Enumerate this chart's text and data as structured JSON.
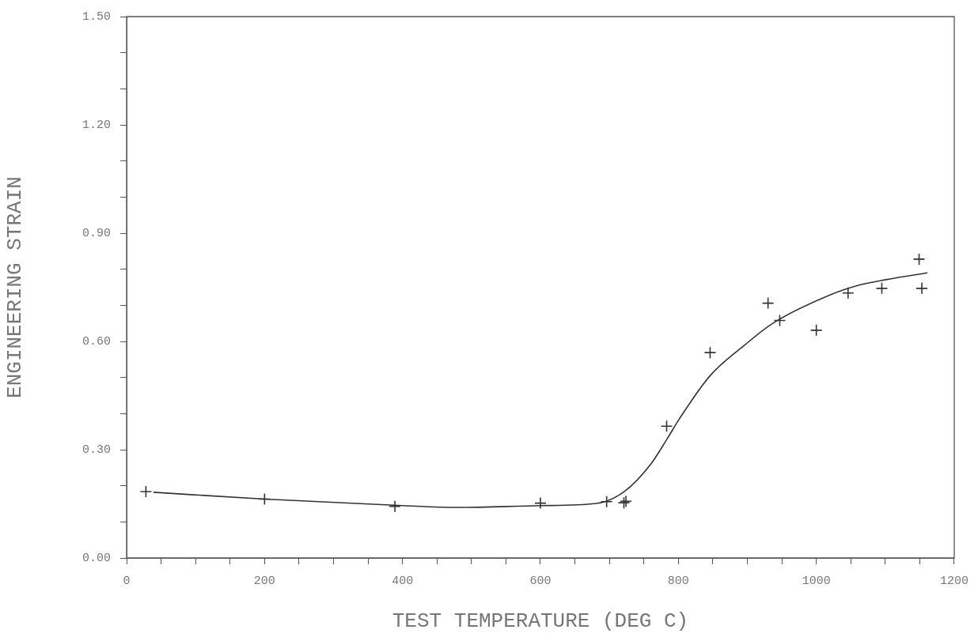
{
  "chart_data": {
    "type": "scatter",
    "xlabel": "TEST TEMPERATURE (DEG C)",
    "ylabel": "ENGINEERING STRAIN",
    "xlim": [
      0,
      1200
    ],
    "ylim": [
      0,
      1.5
    ],
    "xticks": [
      0,
      {
        "value": 50,
        "label": null
      },
      {
        "value": 100,
        "label": null
      },
      {
        "value": 150,
        "label": null
      },
      200,
      {
        "value": 250,
        "label": null
      },
      {
        "value": 300,
        "label": null
      },
      {
        "value": 350,
        "label": null
      },
      400,
      {
        "value": 450,
        "label": null
      },
      {
        "value": 500,
        "label": null
      },
      {
        "value": 550,
        "label": null
      },
      600,
      {
        "value": 650,
        "label": null
      },
      {
        "value": 700,
        "label": null
      },
      {
        "value": 750,
        "label": null
      },
      800,
      {
        "value": 850,
        "label": null
      },
      {
        "value": 900,
        "label": null
      },
      {
        "value": 950,
        "label": null
      },
      1000,
      {
        "value": 1050,
        "label": null
      },
      {
        "value": 1100,
        "label": null
      },
      {
        "value": 1150,
        "label": null
      },
      1200
    ],
    "yticks": [
      {
        "value": 0,
        "label": "0.00"
      },
      {
        "value": 0.1,
        "label": null
      },
      {
        "value": 0.2,
        "label": null
      },
      {
        "value": 0.3,
        "label": "0.30"
      },
      {
        "value": 0.4,
        "label": null
      },
      {
        "value": 0.5,
        "label": null
      },
      {
        "value": 0.6,
        "label": "0.60"
      },
      {
        "value": 0.7,
        "label": null
      },
      {
        "value": 0.8,
        "label": null
      },
      {
        "value": 0.9,
        "label": "0.90"
      },
      {
        "value": 1.0,
        "label": null
      },
      {
        "value": 1.1,
        "label": null
      },
      {
        "value": 1.2,
        "label": "1.20"
      },
      {
        "value": 1.3,
        "label": null
      },
      {
        "value": 1.4,
        "label": null
      },
      {
        "value": 1.5,
        "label": "1.50"
      }
    ],
    "grid": false,
    "legend": false,
    "marker": "cross",
    "series": [
      {
        "color": "#333333",
        "x": [
          28,
          200,
          389,
          600,
          696,
          721,
          724,
          783,
          846,
          930,
          947,
          1000,
          1046,
          1095,
          1149,
          1153
        ],
        "values": [
          0.184,
          0.163,
          0.143,
          0.152,
          0.156,
          0.153,
          0.157,
          0.365,
          0.569,
          0.706,
          0.658,
          0.631,
          0.734,
          0.747,
          0.828,
          0.747
        ]
      },
      {
        "type": "line",
        "color": "#333333",
        "marker": "none",
        "line_style": "solid",
        "x": [
          39,
          200,
          400,
          480,
          600,
          681,
          721,
          760,
          784,
          801,
          846,
          895,
          936,
          1019,
          1064,
          1101,
          1161
        ],
        "values": [
          0.182,
          0.163,
          0.145,
          0.14,
          0.145,
          0.151,
          0.183,
          0.26,
          0.331,
          0.384,
          0.505,
          0.588,
          0.649,
          0.728,
          0.757,
          0.771,
          0.79
        ]
      }
    ]
  }
}
